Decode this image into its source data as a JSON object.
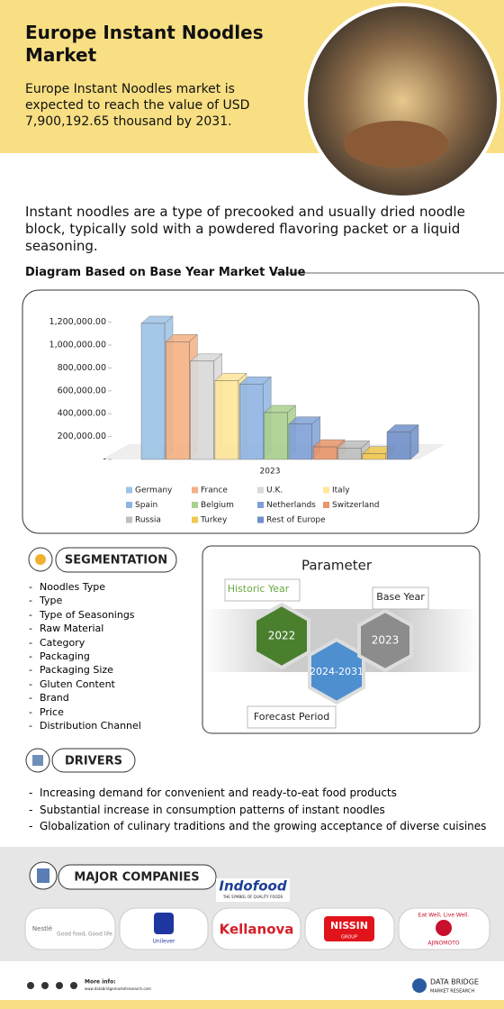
{
  "header": {
    "title": "Europe Instant Noodles Market",
    "text": "Europe Instant Noodles market is expected to reach the value of USD 7,900,192.65 thousand by 2031."
  },
  "intro": "Instant noodles are a type of precooked and usually dried noodle block, typically sold with a powdered flavoring packet or a liquid seasoning.",
  "chart_heading": "Diagram Based on Base Year Market Value",
  "chart_data": {
    "type": "bar3d",
    "categories": [
      "2023"
    ],
    "series": [
      {
        "name": "Germany",
        "color": "#9dc3e6",
        "values": [
          1190000
        ]
      },
      {
        "name": "France",
        "color": "#f4b183",
        "values": [
          1030000
        ]
      },
      {
        "name": "U.K.",
        "color": "#d9d9d9",
        "values": [
          860000
        ]
      },
      {
        "name": "Italy",
        "color": "#ffe699",
        "values": [
          690000
        ]
      },
      {
        "name": "Spain",
        "color": "#8fb4e3",
        "values": [
          660000
        ]
      },
      {
        "name": "Belgium",
        "color": "#a9d18e",
        "values": [
          410000
        ]
      },
      {
        "name": "Netherlands",
        "color": "#7fa0d6",
        "values": [
          310000
        ]
      },
      {
        "name": "Switzerland",
        "color": "#e8956a",
        "values": [
          110000
        ]
      },
      {
        "name": "Russia",
        "color": "#bfbfbf",
        "values": [
          100000
        ]
      },
      {
        "name": "Turkey",
        "color": "#f0c84e",
        "values": [
          50000
        ]
      },
      {
        "name": "Rest of Europe",
        "color": "#6f8fc9",
        "values": [
          240000
        ]
      }
    ],
    "ylim": [
      0,
      1300000
    ],
    "yticks": [
      {
        "value": 0,
        "label": "-"
      },
      {
        "value": 200000,
        "label": "200,000.00"
      },
      {
        "value": 400000,
        "label": "400,000.00"
      },
      {
        "value": 600000,
        "label": "600,000.00"
      },
      {
        "value": 800000,
        "label": "800,000.00"
      },
      {
        "value": 1000000,
        "label": "1,000,000.00"
      },
      {
        "value": 1200000,
        "label": "1,200,000.00"
      }
    ]
  },
  "segmentation": {
    "title": "SEGMENTATION",
    "items": [
      "Noodles Type",
      "Type",
      "Type of Seasonings",
      "Raw Material",
      "Category",
      "Packaging",
      "Packaging Size",
      "Gluten Content",
      "Brand",
      "Price",
      "Distribution Channel"
    ]
  },
  "parameter": {
    "title": "Parameter",
    "historic_label": "Historic Year",
    "historic": "2022",
    "base_label": "Base Year",
    "base": "2023",
    "forecast_label": "Forecast Period",
    "forecast": "2024-2031"
  },
  "drivers": {
    "title": "DRIVERS",
    "items": [
      "Increasing demand for convenient and ready-to-eat food products",
      "Substantial increase in consumption patterns of instant noodles",
      "Globalization of culinary traditions and the growing acceptance of diverse cuisines"
    ]
  },
  "companies": {
    "title": "MAJOR COMPANIES",
    "indofood": "Indofood",
    "indofood_tag": "THE SYMBOL OF QUALITY FOODS",
    "nestle": "Nestlé",
    "nestle_tag": "Good food, Good life",
    "unilever": "Unilever",
    "kellanova": "Kellanova",
    "nissin": "NISSIN",
    "nissin_sub": "GROUP",
    "ajinomoto_tag": "Eat Well, Live Well.",
    "ajinomoto": "AJINOMOTO"
  },
  "footer": {
    "more": "More info:",
    "url": "www.databridgemarketresearch.com",
    "brand": "DATA BRIDGE",
    "brand_sub": "MARKET RESEARCH"
  }
}
